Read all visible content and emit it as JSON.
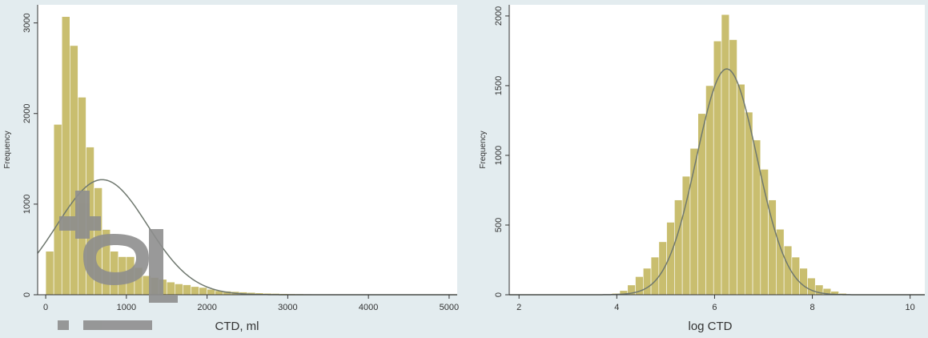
{
  "colors": {
    "bar": "#c9be6f",
    "curve": "#6f786f",
    "watermark": "#8e8e8e"
  },
  "chart_data": [
    {
      "type": "bar",
      "subtype": "histogram-with-normal-curve",
      "xlabel": "CTD, ml",
      "ylabel": "Frequency",
      "xlim": [
        -100,
        5100
      ],
      "ylim": [
        0,
        3200
      ],
      "xticks": [
        "0",
        "1000",
        "2000",
        "3000",
        "4000",
        "5000"
      ],
      "xtick_values": [
        0,
        1000,
        2000,
        3000,
        4000,
        5000
      ],
      "yticks": [
        "0",
        "1000",
        "2000",
        "3000"
      ],
      "ytick_values": [
        0,
        1000,
        2000,
        3000
      ],
      "bin_start": 0,
      "bin_width": 100,
      "values": [
        480,
        1880,
        3070,
        2750,
        2180,
        1630,
        1180,
        720,
        480,
        420,
        420,
        300,
        210,
        190,
        170,
        140,
        120,
        110,
        90,
        80,
        60,
        45,
        40,
        35,
        30,
        25,
        20,
        16,
        14,
        12,
        10,
        9,
        8,
        7,
        6,
        5,
        5,
        4,
        4,
        3,
        3,
        3,
        2,
        2,
        2,
        2,
        1,
        1,
        1,
        1
      ],
      "normal_curve": {
        "mean": 700,
        "sd": 560,
        "peak": 1270
      },
      "grid": false,
      "legend": "none"
    },
    {
      "type": "bar",
      "subtype": "histogram-with-normal-curve",
      "xlabel": "log CTD",
      "ylabel": "Frequency",
      "xlim": [
        1.8,
        10.3
      ],
      "ylim": [
        0,
        2080
      ],
      "xticks": [
        "2",
        "4",
        "6",
        "8",
        "10"
      ],
      "xtick_values": [
        2,
        4,
        6,
        8,
        10
      ],
      "yticks": [
        "0",
        "500",
        "1000",
        "1500",
        "2000"
      ],
      "ytick_values": [
        0,
        500,
        1000,
        1500,
        2000
      ],
      "bin_start": 3.9,
      "bin_width": 0.16,
      "values": [
        10,
        30,
        70,
        130,
        190,
        270,
        380,
        520,
        680,
        850,
        1050,
        1300,
        1500,
        1820,
        2010,
        1830,
        1510,
        1310,
        1110,
        900,
        680,
        470,
        350,
        270,
        190,
        120,
        70,
        45,
        25,
        10
      ],
      "normal_curve": {
        "mean": 6.25,
        "sd": 0.62,
        "peak": 1620
      },
      "grid": false,
      "legend": "none"
    }
  ]
}
